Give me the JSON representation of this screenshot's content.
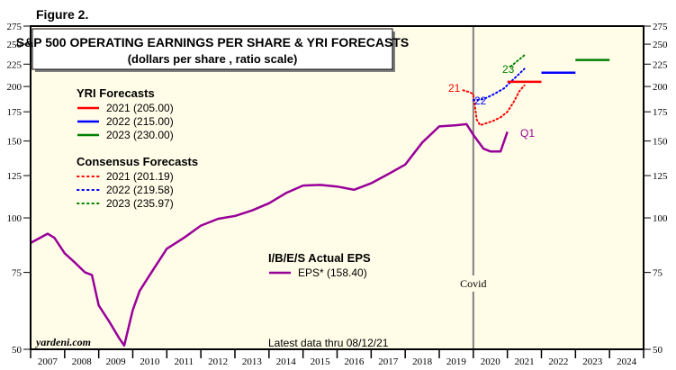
{
  "figure_label": "Figure 2.",
  "chart_data": {
    "type": "line",
    "title": "S&P 500 OPERATING EARNINGS PER SHARE & YRI FORECASTS",
    "subtitle": "(dollars per share , ratio scale)",
    "y_scale": "log",
    "ylim": [
      50,
      275
    ],
    "y_ticks": [
      50,
      75,
      100,
      125,
      150,
      175,
      200,
      225,
      250,
      275
    ],
    "xlim": [
      2007,
      2025
    ],
    "x_tick_labels": [
      "2007",
      "2008",
      "2009",
      "2010",
      "2011",
      "2012",
      "2013",
      "2014",
      "2015",
      "2016",
      "2017",
      "2018",
      "2019",
      "2020",
      "2021",
      "2022",
      "2023",
      "2024"
    ],
    "grid": false,
    "annotations": {
      "source": "yardeni.com",
      "latest": "Latest data thru 08/12/21",
      "covid_label": "Covid",
      "covid_x": 2020.0,
      "q1_label": "Q1",
      "label_21": "21",
      "label_22": "22",
      "label_23": "23"
    },
    "legend_groups": [
      {
        "title": "YRI Forecasts",
        "items": [
          {
            "label": "2021 (205.00)",
            "color": "#ff0000",
            "style": "solid"
          },
          {
            "label": "2022 (215.00)",
            "color": "#0000ff",
            "style": "solid"
          },
          {
            "label": "2023 (230.00)",
            "color": "#008000",
            "style": "solid"
          }
        ]
      },
      {
        "title": "Consensus Forecasts",
        "items": [
          {
            "label": "2021 (201.19)",
            "color": "#ff0000",
            "style": "dotted"
          },
          {
            "label": "2022 (219.58)",
            "color": "#0000ff",
            "style": "dotted"
          },
          {
            "label": "2023 (235.97)",
            "color": "#008000",
            "style": "dotted"
          }
        ]
      },
      {
        "title": "I/B/E/S Actual EPS",
        "items": [
          {
            "label": "EPS* (158.40)",
            "color": "#990099",
            "style": "solid"
          }
        ]
      }
    ],
    "series": [
      {
        "name": "EPS*",
        "color": "#990099",
        "style": "solid",
        "x": [
          2007.0,
          2007.5,
          2007.7,
          2008.0,
          2008.3,
          2008.6,
          2008.8,
          2009.0,
          2009.3,
          2009.6,
          2009.75,
          2010.0,
          2010.2,
          2010.5,
          2011.0,
          2011.5,
          2012.0,
          2012.5,
          2013.0,
          2013.5,
          2014.0,
          2014.5,
          2015.0,
          2015.5,
          2016.0,
          2016.5,
          2017.0,
          2017.5,
          2018.0,
          2018.5,
          2019.0,
          2019.5,
          2019.8,
          2020.0,
          2020.3,
          2020.5,
          2020.8,
          2021.0
        ],
        "y": [
          87.6,
          92,
          90,
          83,
          79,
          75,
          74,
          63,
          58,
          53,
          51,
          61.5,
          68,
          74,
          85,
          90,
          96,
          99.5,
          101,
          104,
          108,
          114,
          118.6,
          119,
          118,
          116,
          120,
          126,
          132.5,
          148.8,
          162,
          163,
          164,
          155,
          144,
          142,
          142,
          157.5
        ]
      },
      {
        "name": "Consensus 2021",
        "color": "#ff0000",
        "style": "dotted",
        "x": [
          2019.7,
          2019.9,
          2020.0,
          2020.05,
          2020.1,
          2020.2,
          2020.4,
          2020.6,
          2020.8,
          2021.0,
          2021.2,
          2021.35,
          2021.5
        ],
        "y": [
          196,
          194,
          192,
          180,
          168,
          163,
          165,
          167,
          170,
          175,
          185,
          195,
          201.19
        ]
      },
      {
        "name": "Consensus 2022",
        "color": "#0000ff",
        "style": "dotted",
        "x": [
          2020.0,
          2020.3,
          2020.6,
          2020.9,
          2021.1,
          2021.3,
          2021.5
        ],
        "y": [
          186,
          187,
          192,
          198,
          205,
          212,
          219.58
        ]
      },
      {
        "name": "Consensus 2023",
        "color": "#008000",
        "style": "dotted",
        "x": [
          2021.1,
          2021.3,
          2021.45,
          2021.5
        ],
        "y": [
          222,
          229,
          234,
          235.97
        ]
      },
      {
        "name": "YRI 2021",
        "color": "#ff0000",
        "style": "solid",
        "x": [
          2021.0,
          2022.0
        ],
        "y": [
          205,
          205
        ]
      },
      {
        "name": "YRI 2022",
        "color": "#0000ff",
        "style": "solid",
        "x": [
          2022.0,
          2023.0
        ],
        "y": [
          215,
          215
        ]
      },
      {
        "name": "YRI 2023",
        "color": "#008000",
        "style": "solid",
        "x": [
          2023.0,
          2024.0
        ],
        "y": [
          230,
          230
        ]
      }
    ]
  }
}
